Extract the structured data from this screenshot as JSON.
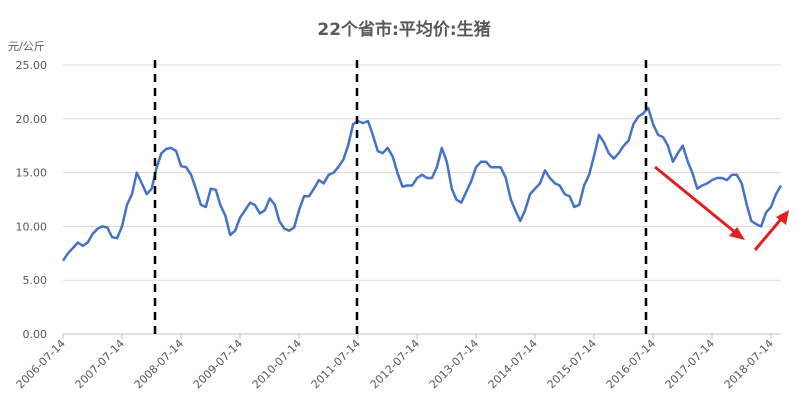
{
  "chart_data": {
    "type": "line",
    "title": "22个省市:平均价:生猪",
    "y_label": "元/公斤",
    "x": [
      "2006-07-14",
      "2006-08-14",
      "2006-09-14",
      "2006-10-14",
      "2006-11-14",
      "2006-12-14",
      "2007-01-14",
      "2007-02-14",
      "2007-03-14",
      "2007-04-14",
      "2007-05-14",
      "2007-06-14",
      "2007-07-14",
      "2007-08-14",
      "2007-09-14",
      "2007-10-14",
      "2007-11-14",
      "2007-12-14",
      "2008-01-14",
      "2008-02-14",
      "2008-03-14",
      "2008-04-14",
      "2008-05-14",
      "2008-06-14",
      "2008-07-14",
      "2008-08-14",
      "2008-09-14",
      "2008-10-14",
      "2008-11-14",
      "2008-12-14",
      "2009-01-14",
      "2009-02-14",
      "2009-03-14",
      "2009-04-14",
      "2009-05-14",
      "2009-06-14",
      "2009-07-14",
      "2009-08-14",
      "2009-09-14",
      "2009-10-14",
      "2009-11-14",
      "2009-12-14",
      "2010-01-14",
      "2010-02-14",
      "2010-03-14",
      "2010-04-14",
      "2010-05-14",
      "2010-06-14",
      "2010-07-14",
      "2010-08-14",
      "2010-09-14",
      "2010-10-14",
      "2010-11-14",
      "2010-12-14",
      "2011-01-14",
      "2011-02-14",
      "2011-03-14",
      "2011-04-14",
      "2011-05-14",
      "2011-06-14",
      "2011-07-14",
      "2011-08-14",
      "2011-09-14",
      "2011-10-14",
      "2011-11-14",
      "2011-12-14",
      "2012-01-14",
      "2012-02-14",
      "2012-03-14",
      "2012-04-14",
      "2012-05-14",
      "2012-06-14",
      "2012-07-14",
      "2012-08-14",
      "2012-09-14",
      "2012-10-14",
      "2012-11-14",
      "2012-12-14",
      "2013-01-14",
      "2013-02-14",
      "2013-03-14",
      "2013-04-14",
      "2013-05-14",
      "2013-06-14",
      "2013-07-14",
      "2013-08-14",
      "2013-09-14",
      "2013-10-14",
      "2013-11-14",
      "2013-12-14",
      "2014-01-14",
      "2014-02-14",
      "2014-03-14",
      "2014-04-14",
      "2014-05-14",
      "2014-06-14",
      "2014-07-14",
      "2014-08-14",
      "2014-09-14",
      "2014-10-14",
      "2014-11-14",
      "2014-12-14",
      "2015-01-14",
      "2015-02-14",
      "2015-03-14",
      "2015-04-14",
      "2015-05-14",
      "2015-06-14",
      "2015-07-14",
      "2015-08-14",
      "2015-09-14",
      "2015-10-14",
      "2015-11-14",
      "2015-12-14",
      "2016-01-14",
      "2016-02-14",
      "2016-03-14",
      "2016-04-14",
      "2016-05-14",
      "2016-06-14",
      "2016-07-14",
      "2016-08-14",
      "2016-09-14",
      "2016-10-14",
      "2016-11-14",
      "2016-12-14",
      "2017-01-14",
      "2017-02-14",
      "2017-03-14",
      "2017-04-14",
      "2017-05-14",
      "2017-06-14",
      "2017-07-14",
      "2017-08-14",
      "2017-09-14",
      "2017-10-14",
      "2017-11-14",
      "2017-12-14",
      "2018-01-14",
      "2018-02-14",
      "2018-03-14",
      "2018-04-14",
      "2018-05-14",
      "2018-06-14",
      "2018-07-14",
      "2018-08-14",
      "2018-09-14"
    ],
    "series": [
      {
        "name": "22个省市:平均价:生猪",
        "color": "#4472c4",
        "values": [
          6.8,
          7.5,
          8.0,
          8.5,
          8.2,
          8.5,
          9.3,
          9.8,
          10.0,
          9.9,
          9.0,
          8.9,
          10.0,
          12.0,
          13.0,
          15.0,
          14.0,
          13.0,
          13.5,
          15.5,
          16.8,
          17.2,
          17.3,
          17.0,
          15.6,
          15.5,
          14.8,
          13.5,
          12.0,
          11.8,
          13.5,
          13.4,
          12.0,
          11.0,
          9.2,
          9.6,
          10.8,
          11.5,
          12.2,
          12.0,
          11.2,
          11.5,
          12.6,
          12.0,
          10.5,
          9.8,
          9.6,
          9.9,
          11.5,
          12.8,
          12.8,
          13.5,
          14.3,
          14.0,
          14.8,
          15.0,
          15.5,
          16.2,
          17.5,
          19.5,
          19.8,
          19.6,
          19.8,
          18.5,
          17.0,
          16.8,
          17.3,
          16.5,
          15.0,
          13.7,
          13.8,
          13.8,
          14.5,
          14.8,
          14.5,
          14.5,
          15.5,
          17.3,
          16.0,
          13.5,
          12.5,
          12.2,
          13.2,
          14.2,
          15.5,
          16.0,
          16.0,
          15.5,
          15.5,
          15.5,
          14.5,
          12.5,
          11.5,
          10.5,
          11.5,
          13.0,
          13.5,
          14.0,
          15.2,
          14.5,
          14.0,
          13.8,
          13.0,
          12.8,
          11.8,
          12.0,
          13.8,
          14.8,
          16.5,
          18.5,
          17.8,
          16.8,
          16.3,
          16.8,
          17.5,
          18.0,
          19.5,
          20.2,
          20.5,
          21.0,
          19.5,
          18.5,
          18.3,
          17.5,
          16.0,
          16.8,
          17.5,
          16.0,
          15.0,
          13.5,
          13.8,
          14.0,
          14.3,
          14.5,
          14.5,
          14.3,
          14.8,
          14.8,
          14.0,
          12.0,
          10.5,
          10.2,
          10.0,
          11.3,
          11.8,
          13.0,
          13.8
        ]
      }
    ],
    "xlim": [
      "2006-07-14",
      "2018-09-14"
    ],
    "xticks": [
      "2006-07-14",
      "2007-07-14",
      "2008-07-14",
      "2009-07-14",
      "2010-07-14",
      "2011-07-14",
      "2012-07-14",
      "2013-07-14",
      "2014-07-14",
      "2015-07-14",
      "2016-07-14",
      "2017-07-14",
      "2018-07-14"
    ],
    "ylim": [
      0,
      25
    ],
    "yticks": [
      {
        "value": 0,
        "label": "0.00"
      },
      {
        "value": 5,
        "label": "5.00"
      },
      {
        "value": 10,
        "label": "10.00"
      },
      {
        "value": 15,
        "label": "15.00"
      },
      {
        "value": 20,
        "label": "20.00"
      },
      {
        "value": 25,
        "label": "25.00"
      }
    ],
    "grid": true
  }
}
